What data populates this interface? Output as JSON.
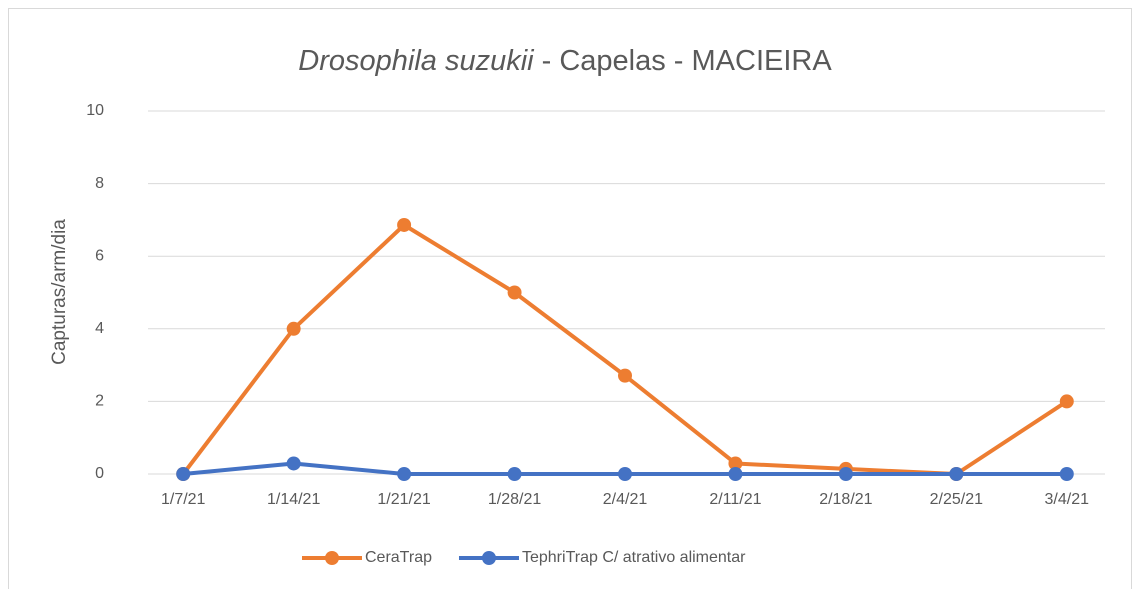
{
  "chart_data": {
    "type": "line",
    "title_parts": [
      "Drosophila suzukii",
      "- Capelas - MACIEIRA"
    ],
    "y_label": "Capturas/arm/dia",
    "categories": [
      "1/7/21",
      "1/14/21",
      "1/21/21",
      "1/28/21",
      "2/4/21",
      "2/11/21",
      "2/18/21",
      "2/25/21",
      "3/4/21"
    ],
    "series": [
      {
        "name": "CeraTrap",
        "color": "#ed7d31",
        "values": [
          0,
          4,
          6.86,
          5,
          2.71,
          0.29,
          0.14,
          0,
          2
        ]
      },
      {
        "name": "TephriTrap C/ atrativo alimentar",
        "color": "#4472c4",
        "values": [
          0,
          0.29,
          0,
          0,
          0,
          0,
          0,
          0,
          0
        ]
      }
    ],
    "ylim": [
      0,
      10
    ],
    "yticks": [
      0,
      2,
      4,
      6,
      8,
      10
    ],
    "grid": true,
    "legend": "bottom"
  }
}
